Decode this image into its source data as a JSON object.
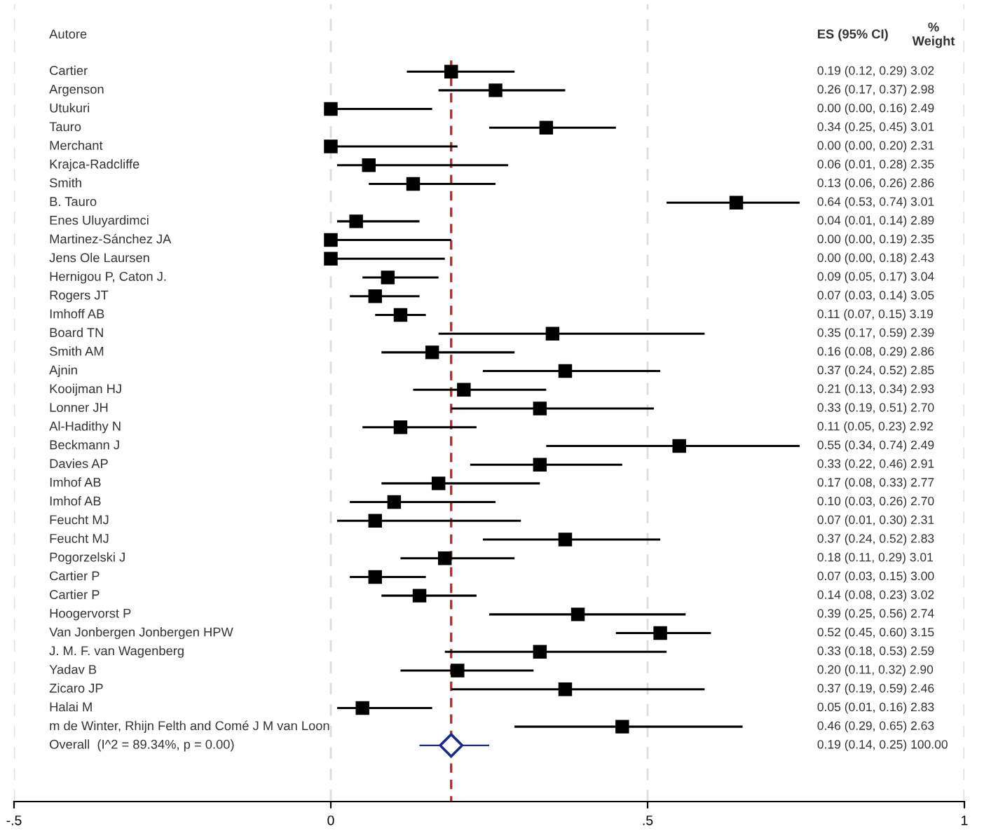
{
  "chart_data": {
    "type": "scatter",
    "orientation": "horizontal",
    "ylabel": "Autore",
    "annotations": [
      "ES (95% CI)",
      "%\nWeight",
      "0.19 (0.12, 0.29) 3.02",
      "0.26 (0.17, 0.37) 2.98",
      "0.00 (0.00, 0.16) 2.49",
      "0.34 (0.25, 0.45) 3.01",
      "0.00 (0.00, 0.20) 2.31",
      "0.06 (0.01, 0.28) 2.35",
      "0.13 (0.06, 0.26) 2.86",
      "0.64 (0.53, 0.74) 3.01",
      "0.04 (0.01, 0.14) 2.89",
      "0.00 (0.00, 0.19) 2.35",
      "0.00 (0.00, 0.18) 2.43",
      "0.09 (0.05, 0.17) 3.04",
      "0.07 (0.03, 0.14) 3.05",
      "0.11 (0.07, 0.15) 3.19",
      "0.35 (0.17, 0.59) 2.39",
      "0.16 (0.08, 0.29) 2.86",
      "0.37 (0.24, 0.52) 2.85",
      "0.21 (0.13, 0.34) 2.93",
      "0.33 (0.19, 0.51) 2.70",
      "0.11 (0.05, 0.23) 2.92",
      "0.55 (0.34, 0.74) 2.49",
      "0.33 (0.22, 0.46) 2.91",
      "0.17 (0.08, 0.33) 2.77",
      "0.10 (0.03, 0.26) 2.70",
      "0.07 (0.01, 0.30) 2.31",
      "0.37 (0.24, 0.52) 2.83",
      "0.18 (0.11, 0.29) 3.01",
      "0.07 (0.03, 0.15) 3.00",
      "0.14 (0.08, 0.23) 3.02",
      "0.39 (0.25, 0.56) 2.74",
      "0.52 (0.45, 0.60) 3.15",
      "0.33 (0.18, 0.53) 2.59",
      "0.20 (0.11, 0.32) 2.90",
      "0.37 (0.19, 0.59) 2.46",
      "0.05 (0.01, 0.16) 2.83",
      "0.46 (0.29, 0.65) 2.63",
      "0.19 (0.14, 0.25) 100.00"
    ],
    "categories": [
      "Cartier",
      "Argenson",
      "Utukuri",
      "Tauro",
      "Merchant",
      "Krajca-Radcliffe",
      "Smith",
      "B. Tauro",
      "Enes Uluyardimci",
      "Martinez-Sánchez JA",
      "Jens Ole Laursen",
      "Hernigou P, Caton J.",
      "Rogers JT",
      "Imhoff AB",
      "Board TN",
      "Smith AM",
      "Ajnin",
      "Kooijman HJ",
      "Lonner JH",
      "Al-Hadithy N",
      "Beckmann J",
      "Davies AP",
      "Imhof AB",
      "Imhof AB",
      "Feucht MJ",
      "Feucht MJ",
      "Pogorzelski J",
      "Cartier P",
      "Cartier P",
      "Hoogervorst P",
      "Van Jonbergen Jonbergen HPW",
      "J. M. F. van Wagenberg",
      "Yadav B",
      "Zicaro JP",
      "Halai M",
      "m de Winter, Rhijn Felth and Comé J M van Loon",
      "Overall  (I^2 = 89.34%, p = 0.00)"
    ],
    "series": [
      {
        "color": "#000000",
        "marker": "square",
        "values": [
          0.19,
          0.26,
          0.0,
          0.34,
          0.0,
          0.06,
          0.13,
          0.64,
          0.04,
          0.0,
          0.0,
          0.09,
          0.07,
          0.11,
          0.35,
          0.16,
          0.37,
          0.21,
          0.33,
          0.11,
          0.55,
          0.33,
          0.17,
          0.1,
          0.07,
          0.37,
          0.18,
          0.07,
          0.14,
          0.39,
          0.52,
          0.33,
          0.2,
          0.37,
          0.05,
          0.46,
          null
        ],
        "errors": [
          [
            0.12,
            0.29
          ],
          [
            0.17,
            0.37
          ],
          [
            0.0,
            0.16
          ],
          [
            0.25,
            0.45
          ],
          [
            0.0,
            0.2
          ],
          [
            0.01,
            0.28
          ],
          [
            0.06,
            0.26
          ],
          [
            0.53,
            0.74
          ],
          [
            0.01,
            0.14
          ],
          [
            0.0,
            0.19
          ],
          [
            0.0,
            0.18
          ],
          [
            0.05,
            0.17
          ],
          [
            0.03,
            0.14
          ],
          [
            0.07,
            0.15
          ],
          [
            0.17,
            0.59
          ],
          [
            0.08,
            0.29
          ],
          [
            0.24,
            0.52
          ],
          [
            0.13,
            0.34
          ],
          [
            0.19,
            0.51
          ],
          [
            0.05,
            0.23
          ],
          [
            0.34,
            0.74
          ],
          [
            0.22,
            0.46
          ],
          [
            0.08,
            0.33
          ],
          [
            0.03,
            0.26
          ],
          [
            0.01,
            0.3
          ],
          [
            0.24,
            0.52
          ],
          [
            0.11,
            0.29
          ],
          [
            0.03,
            0.15
          ],
          [
            0.08,
            0.23
          ],
          [
            0.25,
            0.56
          ],
          [
            0.45,
            0.6
          ],
          [
            0.18,
            0.53
          ],
          [
            0.11,
            0.32
          ],
          [
            0.19,
            0.59
          ],
          [
            0.01,
            0.16
          ],
          [
            0.29,
            0.65
          ],
          null
        ]
      },
      {
        "color": "#1c2a8c",
        "marker": "diamond",
        "values": [
          null,
          null,
          null,
          null,
          null,
          null,
          null,
          null,
          null,
          null,
          null,
          null,
          null,
          null,
          null,
          null,
          null,
          null,
          null,
          null,
          null,
          null,
          null,
          null,
          null,
          null,
          null,
          null,
          null,
          null,
          null,
          null,
          null,
          null,
          null,
          null,
          0.19
        ],
        "errors": [
          null,
          null,
          null,
          null,
          null,
          null,
          null,
          null,
          null,
          null,
          null,
          null,
          null,
          null,
          null,
          null,
          null,
          null,
          null,
          null,
          null,
          null,
          null,
          null,
          null,
          null,
          null,
          null,
          null,
          null,
          null,
          null,
          null,
          null,
          null,
          null,
          [
            0.14,
            0.25
          ]
        ]
      }
    ],
    "xlim": [
      -0.5,
      1
    ],
    "xticks": [
      {
        "value": -0.5,
        "label": "-.5"
      },
      {
        "value": 0,
        "label": "0"
      },
      {
        "value": 0.5,
        "label": ".5"
      },
      {
        "value": 1,
        "label": "1"
      }
    ],
    "ref_lines": [
      {
        "axis": "x",
        "value": 0.19,
        "color": "#a83232",
        "line_style": "dashed"
      }
    ],
    "grid": "x"
  }
}
